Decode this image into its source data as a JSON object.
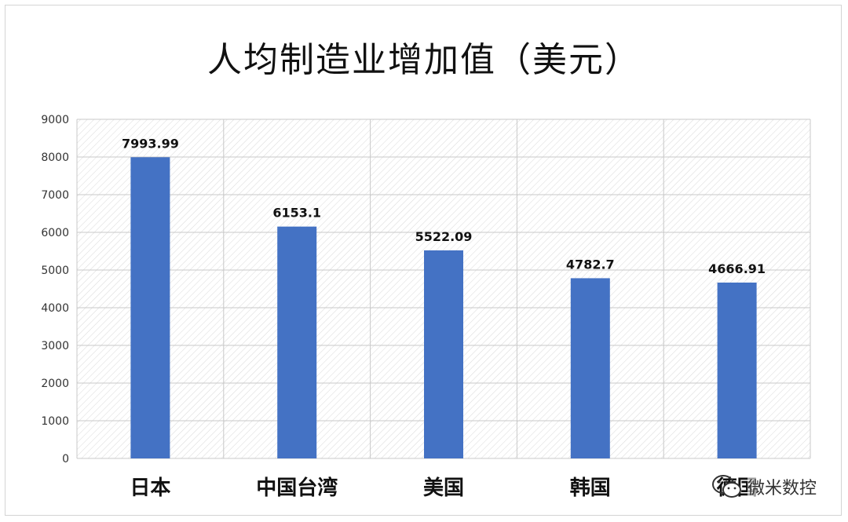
{
  "chart_data": {
    "type": "bar",
    "title": "人均制造业增加值（美元）",
    "categories": [
      "日本",
      "中国台湾",
      "美国",
      "韩国",
      "德国"
    ],
    "values": [
      7993.99,
      6153.1,
      5522.09,
      4782.7,
      4666.91
    ],
    "value_labels": [
      "7993.99",
      "6153.1",
      "5522.09",
      "4782.7",
      "4666.91"
    ],
    "ylim": [
      0,
      9000
    ],
    "yticks": [
      "0",
      "1000",
      "2000",
      "3000",
      "4000",
      "5000",
      "6000",
      "7000",
      "8000",
      "9000"
    ],
    "grid": true,
    "bar_color": "#4472c4"
  },
  "watermark": {
    "text": "微米数控",
    "icon": "wechat-icon"
  }
}
